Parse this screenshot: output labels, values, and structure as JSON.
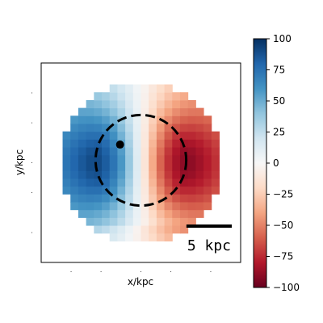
{
  "chart_data": {
    "type": "heatmap",
    "xlabel": "x/kpc",
    "ylabel": "y/kpc",
    "colormap": "RdBu",
    "colormap_stops": [
      "#67001f",
      "#b2182b",
      "#d6604d",
      "#f4a582",
      "#fddbc7",
      "#f7f7f7",
      "#d1e5f0",
      "#92c5de",
      "#4393c3",
      "#2166ac",
      "#053061"
    ],
    "color_range": [
      -100,
      100
    ],
    "colorbar_ticks": [
      100,
      75,
      50,
      25,
      0,
      -25,
      -50,
      -75,
      -100
    ],
    "colorbar_tick_labels": [
      "100",
      "75",
      "50",
      "25",
      "0",
      "−25",
      "−50",
      "−75",
      "−100"
    ],
    "grid_size": 22,
    "disk_radius_kpc": 8.5,
    "velocity_field": "rotation: positive (receding) on left side, negative on right side, peak amplitude about 100",
    "dashed_circle_radius_kpc": 5,
    "marker_point_kpc": [
      -2.3,
      2.0
    ],
    "scale_bar": {
      "length_kpc": 5,
      "label": "5 kpc"
    },
    "xlim": [
      -11,
      11
    ],
    "ylim": [
      -11,
      11
    ],
    "grid": false
  }
}
